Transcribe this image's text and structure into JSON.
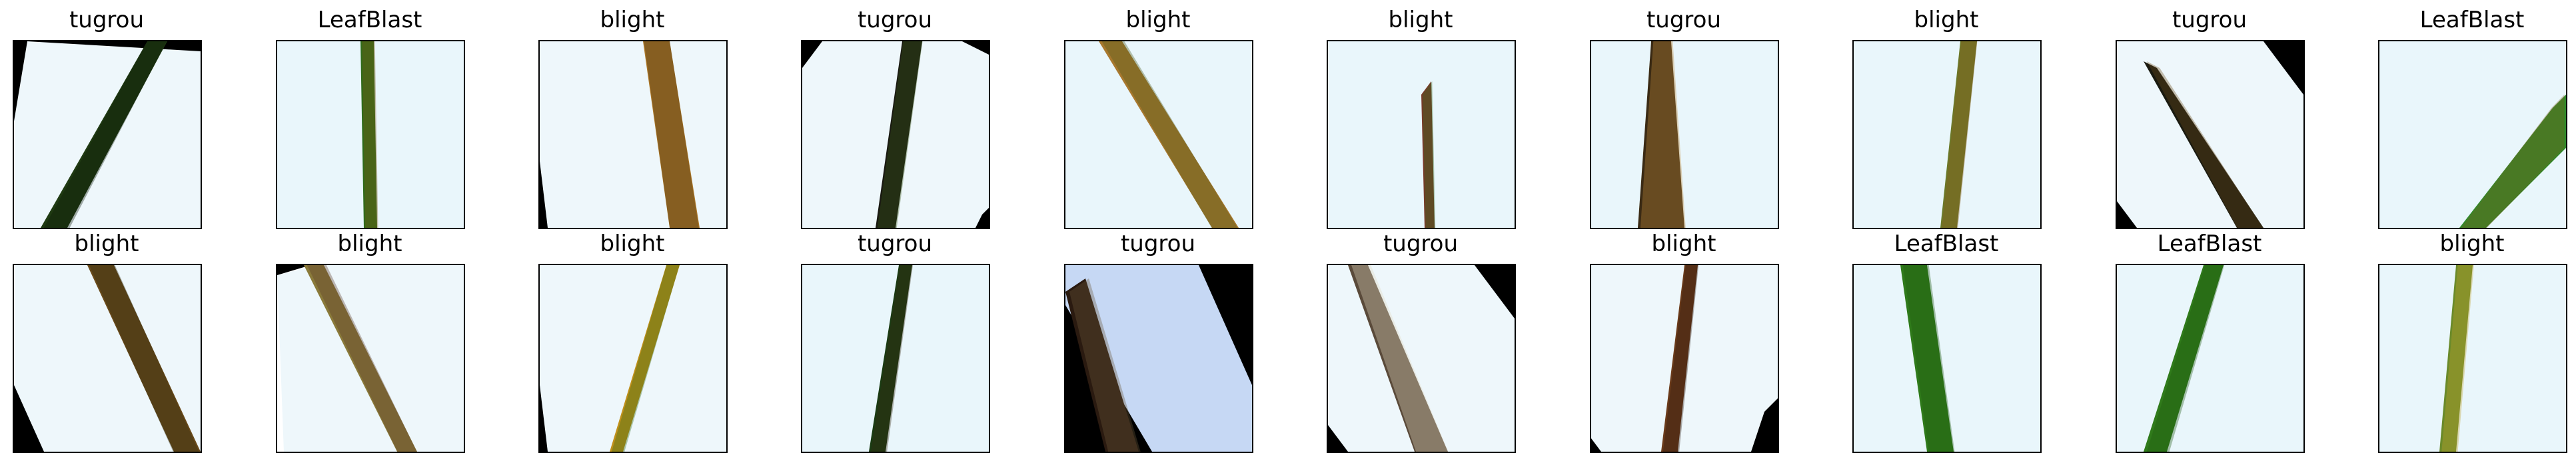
{
  "panels": [
    {
      "label": "tugrou"
    },
    {
      "label": "LeafBlast"
    },
    {
      "label": "blight"
    },
    {
      "label": "tugrou"
    },
    {
      "label": "blight"
    },
    {
      "label": "blight"
    },
    {
      "label": "tugrou"
    },
    {
      "label": "blight"
    },
    {
      "label": "tugrou"
    },
    {
      "label": "LeafBlast"
    },
    {
      "label": "blight"
    },
    {
      "label": "blight"
    },
    {
      "label": "blight"
    },
    {
      "label": "tugrou"
    },
    {
      "label": "tugrou"
    },
    {
      "label": "tugrou"
    },
    {
      "label": "blight"
    },
    {
      "label": "LeafBlast"
    },
    {
      "label": "LeafBlast"
    },
    {
      "label": "blight"
    }
  ]
}
